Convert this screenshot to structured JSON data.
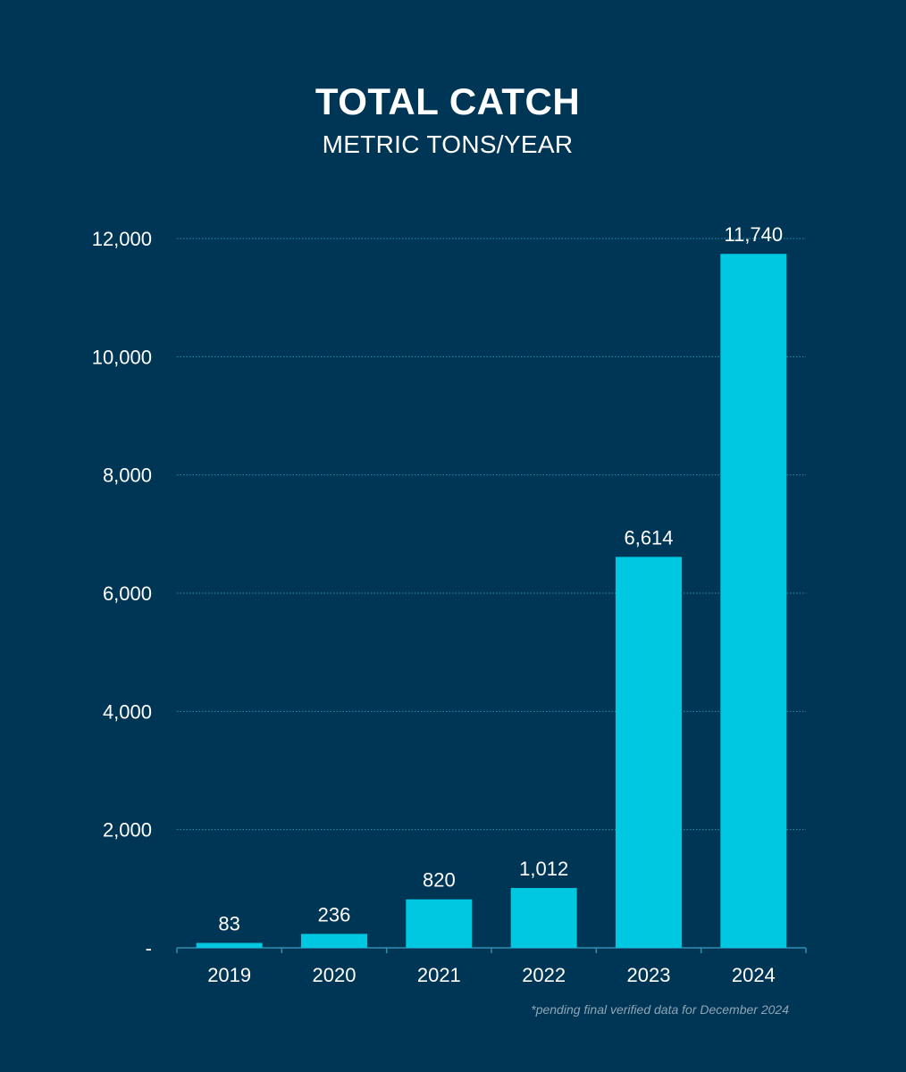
{
  "chart_data": {
    "type": "bar",
    "title": "TOTAL CATCH",
    "subtitle": "METRIC TONS/YEAR",
    "categories": [
      "2019",
      "2020",
      "2021",
      "2022",
      "2023",
      "2024"
    ],
    "values": [
      83,
      236,
      820,
      1012,
      6614,
      11740
    ],
    "data_labels": [
      "83",
      "236",
      "820",
      "1,012",
      "6,614",
      "11,740"
    ],
    "y_ticks": [
      0,
      2000,
      4000,
      6000,
      8000,
      10000,
      12000
    ],
    "y_tick_labels": [
      "-",
      "2,000",
      "4,000",
      "6,000",
      "8,000",
      "10,000",
      "12,000"
    ],
    "ylim": [
      0,
      12000
    ],
    "grid": "horizontal dotted",
    "legend": "none",
    "bar_color": "#00c8e0",
    "background_color": "#003655",
    "grid_color": "#2f8fb0",
    "footnote": "*pending final verified data for December 2024"
  }
}
